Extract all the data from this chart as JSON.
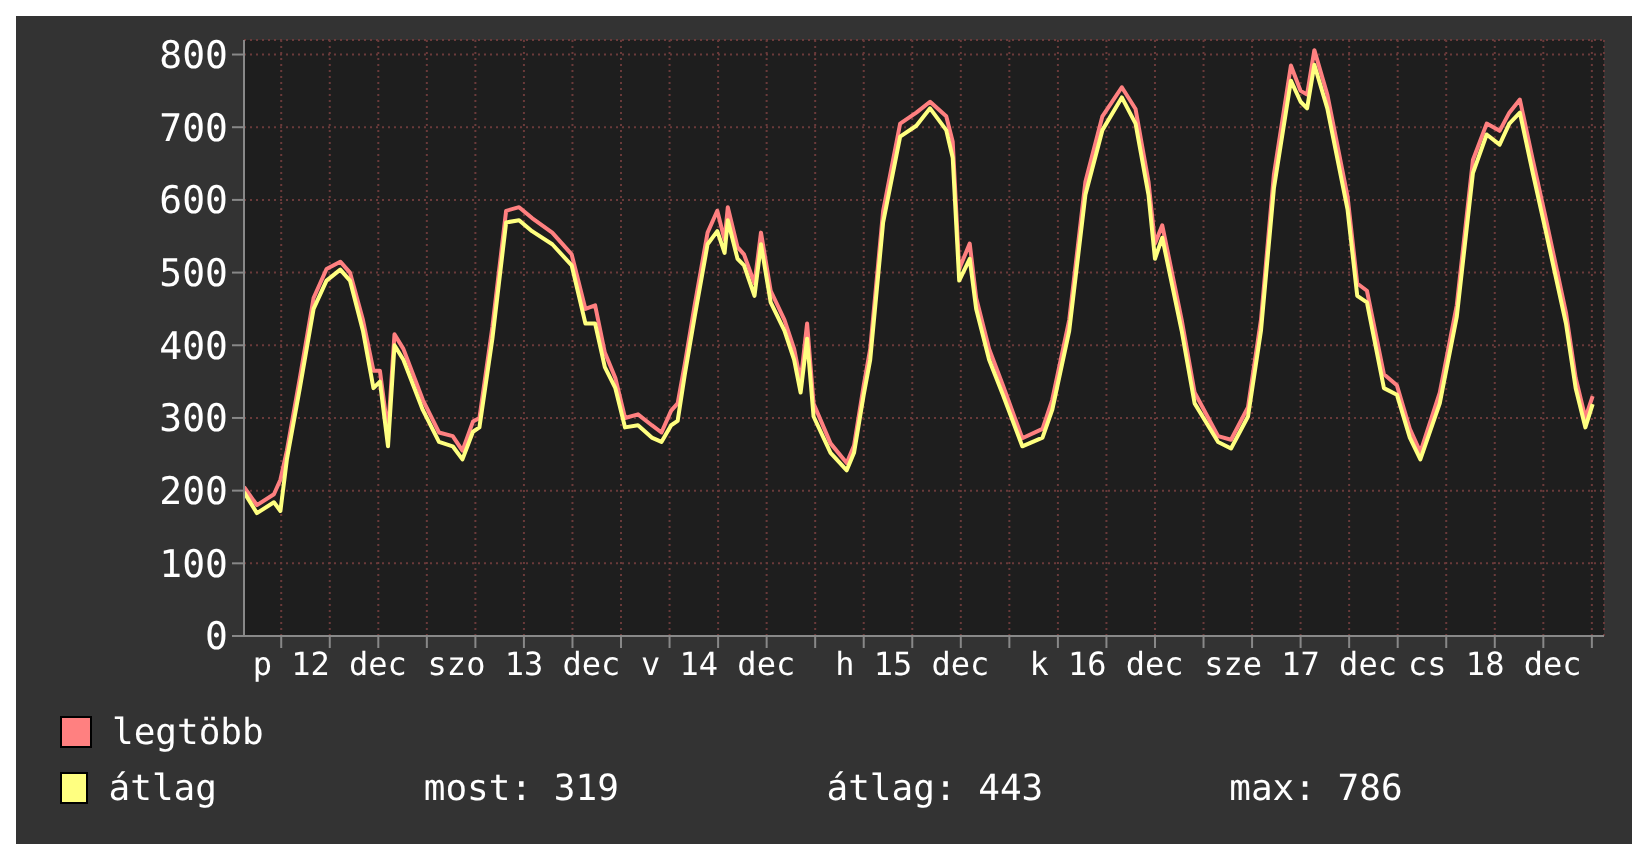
{
  "chart_data": {
    "type": "line",
    "x": [
      "--12-12T01:24",
      "--12-12T03:00",
      "--12-12T05:06",
      "--12-12T05:54",
      "--12-12T06:42",
      "--12-12T08:18",
      "--12-12T10:00",
      "--12-12T11:36",
      "--12-12T13:18",
      "--12-12T14:30",
      "--12-12T16:06",
      "--12-12T17:24",
      "--12-12T18:12",
      "--12-12T19:12",
      "--12-12T20:00",
      "--12-12T21:06",
      "--12-12T23:30",
      "--12-13T01:30",
      "--12-13T03:12",
      "--12-13T04:24",
      "--12-13T05:42",
      "--12-13T06:30",
      "--12-13T08:06",
      "--12-13T09:48",
      "--12-13T11:24",
      "--12-13T13:00",
      "--12-13T15:30",
      "--12-13T17:54",
      "--12-13T19:36",
      "--12-13T20:48",
      "--12-13T22:00",
      "--12-13T23:18",
      "--12-14T00:30",
      "--12-14T02:06",
      "--12-14T03:48",
      "--12-14T05:00",
      "--12-14T06:12",
      "--12-14T07:00",
      "--12-14T07:54",
      "--12-14T09:06",
      "--12-14T10:42",
      "--12-14T11:54",
      "--12-14T12:48",
      "--12-14T13:12",
      "--12-14T14:24",
      "--12-14T15:12",
      "--12-14T16:30",
      "--12-14T17:18",
      "--12-14T18:30",
      "--12-14T20:12",
      "--12-14T21:24",
      "--12-14T22:12",
      "--12-14T23:00",
      "--12-14T23:48",
      "--12-15T01:54",
      "--12-15T03:54",
      "--12-15T04:48",
      "--12-15T06:00",
      "--12-15T06:48",
      "--12-15T08:24",
      "--12-15T10:30",
      "--12-15T12:30",
      "--12-15T14:12",
      "--12-15T16:12",
      "--12-15T17:00",
      "--12-15T17:48",
      "--12-15T19:06",
      "--12-15T19:54",
      "--12-15T21:30",
      "--12-15T23:12",
      "--12-16T01:36",
      "--12-16T04:06",
      "--12-16T05:18",
      "--12-16T07:24",
      "--12-16T09:24",
      "--12-16T11:30",
      "--12-16T13:54",
      "--12-16T15:36",
      "--12-16T17:12",
      "--12-16T18:00",
      "--12-16T18:54",
      "--12-16T21:18",
      "--12-16T22:54",
      "--12-17T01:48",
      "--12-17T03:24",
      "--12-17T05:30",
      "--12-17T07:06",
      "--12-17T08:42",
      "--12-17T10:48",
      "--12-17T12:00",
      "--12-17T12:48",
      "--12-17T13:42",
      "--12-17T15:18",
      "--12-17T17:48",
      "--12-17T19:00",
      "--12-17T20:12",
      "--12-17T22:18",
      "--12-17T23:54",
      "--12-18T01:30",
      "--12-18T02:48",
      "--12-18T05:12",
      "--12-18T07:18",
      "--12-18T09:18",
      "--12-18T11:00",
      "--12-18T12:36",
      "--12-18T13:48",
      "--12-18T15:06",
      "--12-18T16:42",
      "--12-18T18:18",
      "--12-18T20:48",
      "--12-18T22:00",
      "--12-18T23:12",
      "--12-19T00:06"
    ],
    "series": [
      {
        "name": "legtöbb",
        "color": "#ff8080",
        "values": [
          205,
          180,
          195,
          215,
          255,
          355,
          465,
          505,
          515,
          500,
          435,
          365,
          365,
          280,
          415,
          395,
          325,
          280,
          275,
          255,
          295,
          300,
          425,
          585,
          590,
          575,
          555,
          525,
          450,
          455,
          390,
          355,
          300,
          305,
          290,
          280,
          310,
          320,
          375,
          455,
          555,
          585,
          545,
          590,
          535,
          525,
          485,
          555,
          475,
          435,
          395,
          350,
          430,
          320,
          265,
          238,
          262,
          345,
          395,
          585,
          705,
          720,
          735,
          715,
          680,
          505,
          540,
          465,
          395,
          345,
          272,
          285,
          325,
          435,
          625,
          715,
          755,
          725,
          625,
          540,
          565,
          435,
          335,
          275,
          270,
          315,
          435,
          635,
          785,
          750,
          745,
          806,
          745,
          605,
          485,
          475,
          360,
          345,
          285,
          253,
          335,
          455,
          655,
          705,
          695,
          720,
          738,
          655,
          575,
          445,
          355,
          300,
          330
        ]
      },
      {
        "name": "átlag",
        "color": "#ffff80",
        "values": [
          198,
          169,
          184,
          172,
          243,
          341,
          450,
          489,
          504,
          489,
          420,
          341,
          350,
          261,
          400,
          380,
          311,
          267,
          261,
          243,
          281,
          287,
          409,
          569,
          572,
          557,
          539,
          510,
          430,
          430,
          370,
          341,
          287,
          290,
          273,
          267,
          290,
          296,
          361,
          439,
          539,
          557,
          527,
          572,
          519,
          510,
          468,
          539,
          459,
          420,
          380,
          335,
          409,
          302,
          252,
          228,
          252,
          332,
          380,
          569,
          687,
          702,
          726,
          696,
          658,
          489,
          519,
          450,
          380,
          332,
          261,
          273,
          311,
          420,
          607,
          696,
          741,
          705,
          607,
          519,
          548,
          420,
          320,
          267,
          258,
          302,
          420,
          616,
          764,
          735,
          726,
          786,
          726,
          587,
          468,
          459,
          341,
          332,
          273,
          243,
          320,
          439,
          637,
          690,
          676,
          705,
          720,
          637,
          557,
          430,
          341,
          287,
          319
        ]
      }
    ],
    "xlim": [
      "--12-12T01:24",
      "--12-19T01:30"
    ],
    "xticks": [
      {
        "value": "--12-12T06:00",
        "label": null
      },
      {
        "value": "--12-12T12:00",
        "label": "p 12 dec"
      },
      {
        "value": "--12-12T18:00",
        "label": null
      },
      {
        "value": "--12-13T00:00",
        "label": null
      },
      {
        "value": "--12-13T06:00",
        "label": null
      },
      {
        "value": "--12-13T12:00",
        "label": "szo 13 dec"
      },
      {
        "value": "--12-13T18:00",
        "label": null
      },
      {
        "value": "--12-14T00:00",
        "label": null
      },
      {
        "value": "--12-14T06:00",
        "label": null
      },
      {
        "value": "--12-14T12:00",
        "label": "v 14 dec"
      },
      {
        "value": "--12-14T18:00",
        "label": null
      },
      {
        "value": "--12-15T00:00",
        "label": null
      },
      {
        "value": "--12-15T06:00",
        "label": null
      },
      {
        "value": "--12-15T12:00",
        "label": "h 15 dec"
      },
      {
        "value": "--12-15T18:00",
        "label": null
      },
      {
        "value": "--12-16T00:00",
        "label": null
      },
      {
        "value": "--12-16T06:00",
        "label": null
      },
      {
        "value": "--12-16T12:00",
        "label": "k 16 dec"
      },
      {
        "value": "--12-16T18:00",
        "label": null
      },
      {
        "value": "--12-17T00:00",
        "label": null
      },
      {
        "value": "--12-17T06:00",
        "label": null
      },
      {
        "value": "--12-17T12:00",
        "label": "sze 17 dec"
      },
      {
        "value": "--12-17T18:00",
        "label": null
      },
      {
        "value": "--12-18T00:00",
        "label": null
      },
      {
        "value": "--12-18T06:00",
        "label": null
      },
      {
        "value": "--12-18T12:00",
        "label": "cs 18 dec"
      },
      {
        "value": "--12-18T18:00",
        "label": null
      },
      {
        "value": "--12-19T00:00",
        "label": null
      }
    ],
    "ylim": [
      0,
      820
    ],
    "yticks": [
      0,
      100,
      200,
      300,
      400,
      500,
      600,
      700,
      800
    ],
    "grid": true,
    "legend": "bottom",
    "marker": "none",
    "line_style": "solid",
    "annotations": [
      "most: 319",
      "átlag: 443",
      "max: 786"
    ]
  }
}
